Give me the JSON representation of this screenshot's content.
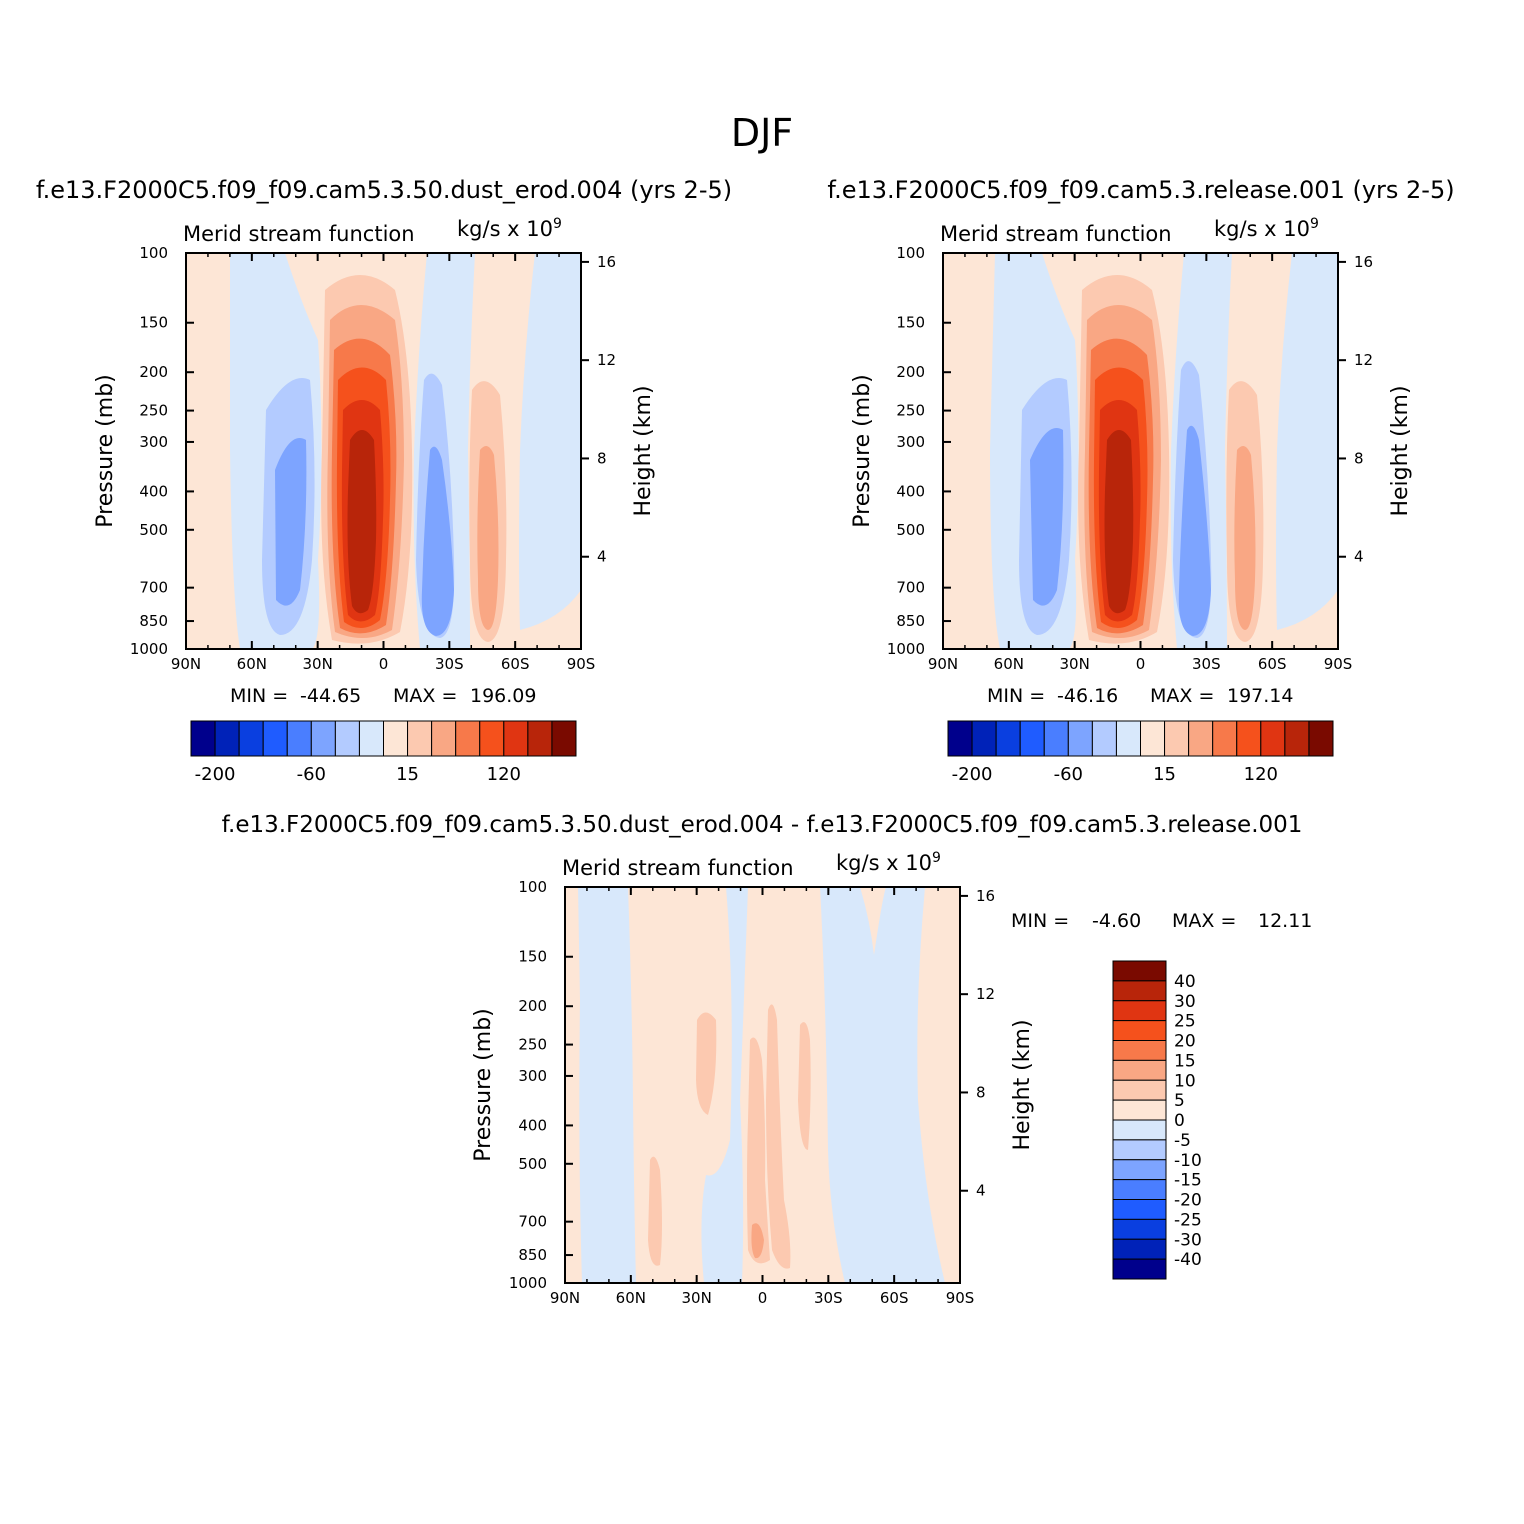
{
  "title": "DJF",
  "scale_colors": [
    "#00008c",
    "#0022b8",
    "#0a3fe0",
    "#1f5cff",
    "#4a7eff",
    "#7da4ff",
    "#b3cbff",
    "#d8e8fb",
    "#fde6d6",
    "#fcc9b0",
    "#f9a784",
    "#f7794a",
    "#f5511c",
    "#e03512",
    "#b8250a",
    "#7a0a00"
  ],
  "diff_colors": [
    "#00008c",
    "#0022b8",
    "#0a3fe0",
    "#1f5cff",
    "#4a7eff",
    "#7da4ff",
    "#b3cbff",
    "#d8e8fb",
    "#fde6d6",
    "#fcc9b0",
    "#f9a784",
    "#f7794a",
    "#f5511c",
    "#e03512",
    "#b8250a",
    "#7a0a00"
  ],
  "chart_data": [
    {
      "type": "heatmap",
      "title": "f.e13.F2000C5.f09_f09.cam5.3.50.dust_erod.004 (yrs 2-5)",
      "subtitle_left": "Merid stream function",
      "subtitle_right": "kg/s x 10",
      "subtitle_exp": "9",
      "ylabel": "Pressure (mb)",
      "ylabel_right": "Height (km)",
      "x_ticks": [
        "90N",
        "60N",
        "30N",
        "0",
        "30S",
        "60S",
        "90S"
      ],
      "y_ticks": [
        "100",
        "150",
        "200",
        "250",
        "300",
        "400",
        "500",
        "700",
        "850",
        "1000"
      ],
      "y_ticks_right": [
        "16",
        "12",
        "8",
        "4"
      ],
      "min_label": "MIN =",
      "min_value": "-44.65",
      "max_label": "MAX =",
      "max_value": "196.09",
      "colorbar_labels": [
        "-200",
        "-60",
        "15",
        "120"
      ],
      "cells": [
        {
          "lat": 35,
          "color": 5
        },
        {
          "lat": 35,
          "color": 4
        },
        {
          "lat": 10,
          "color": 9
        },
        {
          "lat": 10,
          "color": 10
        },
        {
          "lat": 10,
          "color": 11
        },
        {
          "lat": 10,
          "color": 12
        },
        {
          "lat": 10,
          "color": 13
        },
        {
          "lat": 10,
          "color": 14
        },
        {
          "lat": -25,
          "color": 6
        },
        {
          "lat": -25,
          "color": 4
        },
        {
          "lat": -48,
          "color": 9
        },
        {
          "lat": -48,
          "color": 10
        }
      ]
    },
    {
      "type": "heatmap",
      "title": "f.e13.F2000C5.f09_f09.cam5.3.release.001 (yrs 2-5)",
      "subtitle_left": "Merid stream function",
      "subtitle_right": "kg/s x 10",
      "subtitle_exp": "9",
      "ylabel": "Pressure (mb)",
      "ylabel_right": "Height (km)",
      "x_ticks": [
        "90N",
        "60N",
        "30N",
        "0",
        "30S",
        "60S",
        "90S"
      ],
      "y_ticks": [
        "100",
        "150",
        "200",
        "250",
        "300",
        "400",
        "500",
        "700",
        "850",
        "1000"
      ],
      "y_ticks_right": [
        "16",
        "12",
        "8",
        "4"
      ],
      "min_label": "MIN =",
      "min_value": "-46.16",
      "max_label": "MAX =",
      "max_value": "197.14",
      "colorbar_labels": [
        "-200",
        "-60",
        "15",
        "120"
      ]
    },
    {
      "type": "heatmap",
      "title": "f.e13.F2000C5.f09_f09.cam5.3.50.dust_erod.004 - f.e13.F2000C5.f09_f09.cam5.3.release.001",
      "subtitle_left": "Merid stream function",
      "subtitle_right": "kg/s x 10",
      "subtitle_exp": "9",
      "ylabel": "Pressure (mb)",
      "ylabel_right": "Height (km)",
      "x_ticks": [
        "90N",
        "60N",
        "30N",
        "0",
        "30S",
        "60S",
        "90S"
      ],
      "y_ticks": [
        "100",
        "150",
        "200",
        "250",
        "300",
        "400",
        "500",
        "700",
        "850",
        "1000"
      ],
      "y_ticks_right": [
        "16",
        "12",
        "8",
        "4"
      ],
      "min_label": "MIN =",
      "min_value": "-4.60",
      "max_label": "MAX =",
      "max_value": "12.11",
      "colorbar_labels": [
        "40",
        "30",
        "25",
        "20",
        "15",
        "10",
        "5",
        "0",
        "-5",
        "-10",
        "-15",
        "-20",
        "-25",
        "-30",
        "-40"
      ]
    }
  ]
}
